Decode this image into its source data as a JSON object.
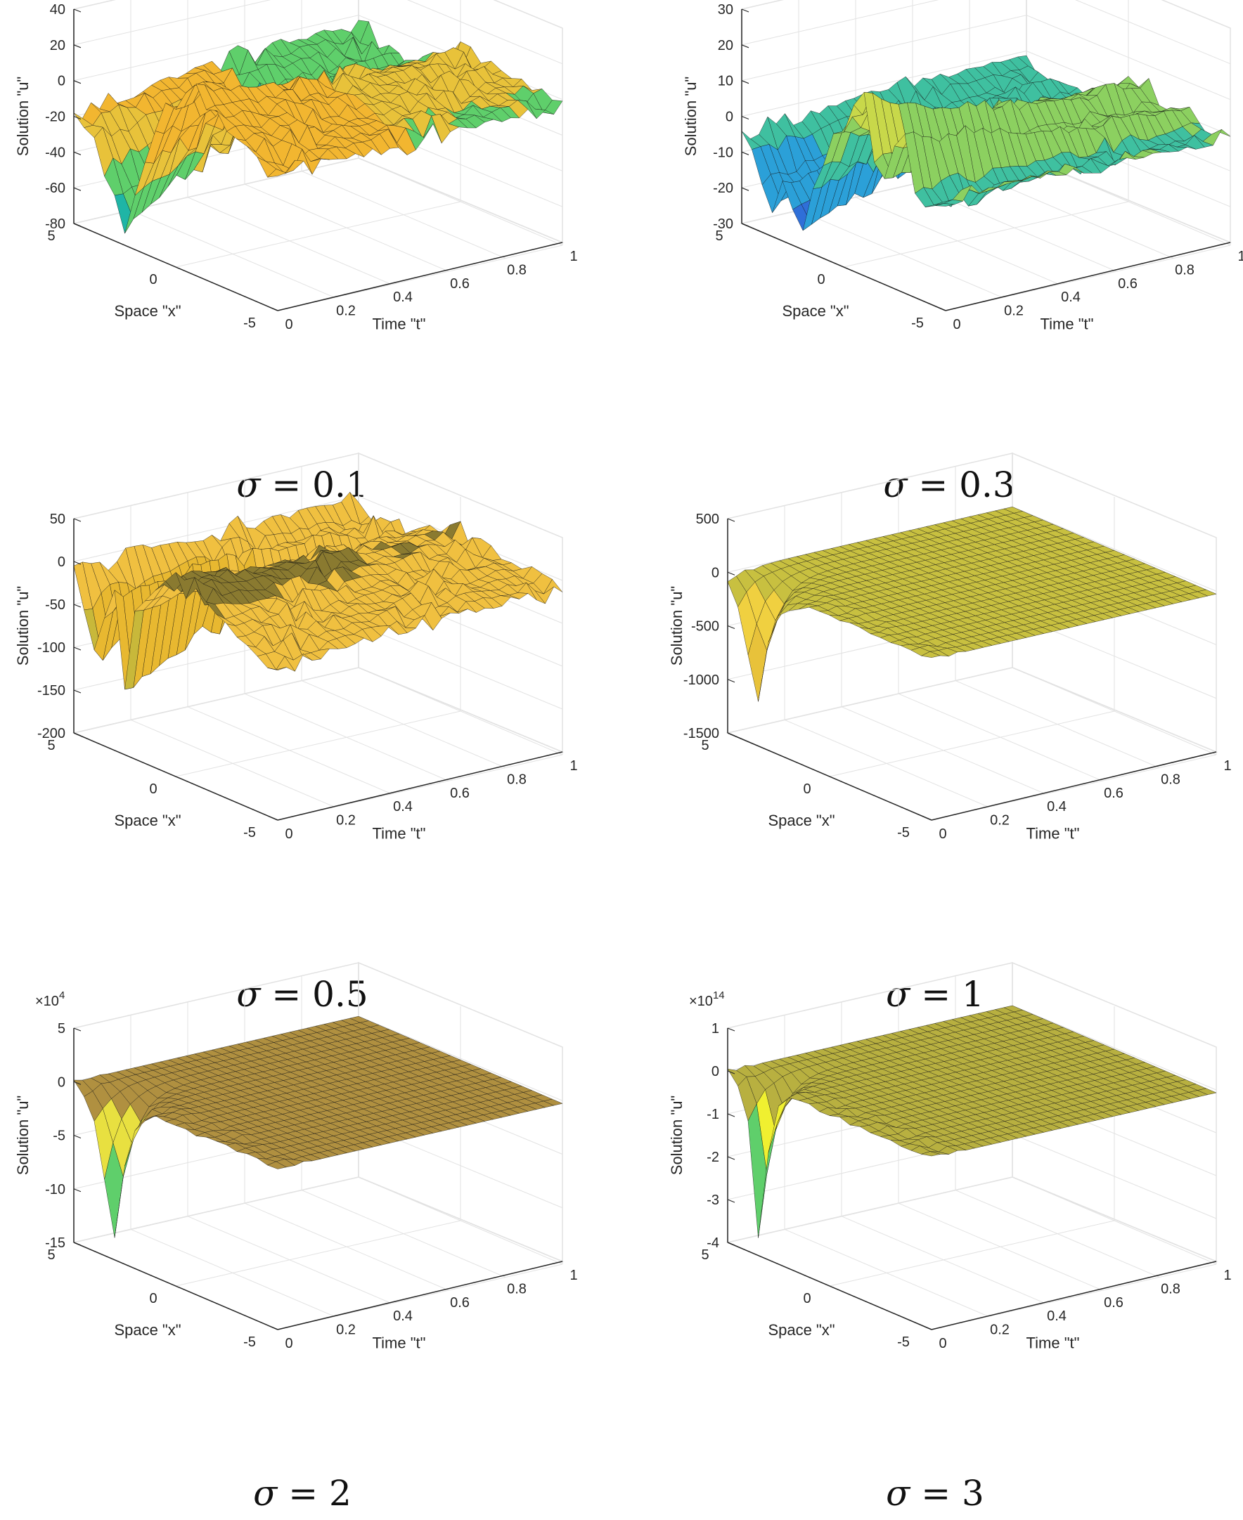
{
  "chart_data": [
    {
      "type": "surface",
      "caption_symbol": "σ",
      "caption_value": "= 0.1",
      "xlabel": "Space \"x\"",
      "ylabel": "Time \"t\"",
      "zlabel": "Solution \"u\"",
      "xlim": [
        -5,
        5
      ],
      "ylim": [
        0,
        1
      ],
      "zlim": [
        -80,
        40
      ],
      "zticks": [
        "40",
        "20",
        "0",
        "-20",
        "-40",
        "-60",
        "-80"
      ],
      "zexp": "",
      "zexp_power": "",
      "xticks": [
        "5",
        "0",
        "-5"
      ],
      "tticks": [
        "0",
        "0.2",
        "0.4",
        "0.6",
        "0.8",
        "1"
      ],
      "edge_profile": [
        -20,
        -22,
        -30,
        -45,
        -60,
        -70,
        -50,
        -30,
        -10,
        5,
        12,
        20,
        25,
        20,
        15,
        10,
        5,
        3,
        0,
        -2,
        -5
      ],
      "minimum_u": -70,
      "colors": [
        "#3b3fd0",
        "#2f8fd8",
        "#1fb5a6",
        "#5fcf6b",
        "#e8c23a",
        "#f2b630"
      ]
    },
    {
      "type": "surface",
      "caption_symbol": "σ",
      "caption_value": "= 0.3",
      "xlabel": "Space \"x\"",
      "ylabel": "Time \"t\"",
      "zlabel": "Solution \"u\"",
      "xlim": [
        -5,
        5
      ],
      "ylim": [
        0,
        1
      ],
      "zlim": [
        -30,
        30
      ],
      "zticks": [
        "30",
        "20",
        "10",
        "0",
        "-10",
        "-20",
        "-30"
      ],
      "zexp": "",
      "zexp_power": "",
      "xticks": [
        "5",
        "0",
        "-5"
      ],
      "tticks": [
        "0",
        "0.2",
        "0.4",
        "0.6",
        "0.8",
        "1"
      ],
      "edge_profile": [
        -5,
        -10,
        -18,
        -22,
        -15,
        -20,
        -25,
        -12,
        -5,
        5,
        10,
        15,
        20,
        5,
        0,
        10,
        15,
        0,
        -5,
        0,
        2
      ],
      "minimum_u": -25,
      "colors": [
        "#2f6fd8",
        "#2ba0d8",
        "#3fc0a0",
        "#8cd060",
        "#c8d84a",
        "#e8e040"
      ]
    },
    {
      "type": "surface",
      "caption_symbol": "σ",
      "caption_value": "= 0.5",
      "xlabel": "Space \"x\"",
      "ylabel": "Time \"t\"",
      "zlabel": "Solution \"u\"",
      "xlim": [
        -5,
        5
      ],
      "ylim": [
        0,
        1
      ],
      "zlim": [
        -200,
        50
      ],
      "zticks": [
        "50",
        "0",
        "-50",
        "-100",
        "-150",
        "-200"
      ],
      "zexp": "",
      "zexp_power": "",
      "xticks": [
        "5",
        "0",
        "-5"
      ],
      "tticks": [
        "0",
        "0.2",
        "0.4",
        "0.6",
        "0.8",
        "1"
      ],
      "edge_profile": [
        -10,
        -50,
        -100,
        -40,
        -20,
        -130,
        -30,
        -10,
        10,
        20,
        30,
        25,
        20,
        10,
        5,
        0,
        -5,
        -10,
        -15,
        -20,
        -25
      ],
      "minimum_u": -130,
      "colors": [
        "#2ba0d8",
        "#3fc0a0",
        "#c8b83a",
        "#e8b830",
        "#f0c040",
        "#8a7a30"
      ]
    },
    {
      "type": "surface",
      "caption_symbol": "σ",
      "caption_value": "= 1",
      "xlabel": "Space \"x\"",
      "ylabel": "Time \"t\"",
      "zlabel": "Solution \"u\"",
      "xlim": [
        -5,
        5
      ],
      "ylim": [
        0,
        1
      ],
      "zlim": [
        -1500,
        500
      ],
      "zticks": [
        "500",
        "0",
        "-500",
        "-1000",
        "-1500"
      ],
      "zexp": "",
      "zexp_power": "",
      "xticks": [
        "5",
        "0",
        "-5"
      ],
      "tticks": [
        "0",
        "0.2",
        "0.4",
        "0.6",
        "0.8",
        "1"
      ],
      "edge_profile": [
        -100,
        -300,
        -700,
        -1100,
        -500,
        -200,
        -100,
        -50,
        0,
        0,
        0,
        0,
        0,
        0,
        0,
        0,
        0,
        0,
        0,
        0,
        0
      ],
      "minimum_u": -1100,
      "colors": [
        "#2ba0d8",
        "#3fc0a0",
        "#e8c23a",
        "#f0d040",
        "#c8c040",
        "#a8a030"
      ]
    },
    {
      "type": "surface",
      "caption_symbol": "σ",
      "caption_value": "= 2",
      "xlabel": "Space \"x\"",
      "ylabel": "Time \"t\"",
      "zlabel": "Solution \"u\"",
      "xlim": [
        -5,
        5
      ],
      "ylim": [
        0,
        1
      ],
      "zlim": [
        -15,
        5
      ],
      "zticks": [
        "5",
        "0",
        "-5",
        "-10",
        "-15"
      ],
      "zexp": "×10",
      "zexp_power": "4",
      "xticks": [
        "5",
        "0",
        "-5"
      ],
      "tticks": [
        "0",
        "0.2",
        "0.4",
        "0.6",
        "0.8",
        "1"
      ],
      "edge_profile": [
        0,
        -1,
        -3,
        -8,
        -13,
        -6,
        -2,
        -1,
        0,
        0,
        0,
        0,
        0,
        0,
        0,
        0,
        0,
        0,
        0,
        0,
        0
      ],
      "minimum_u": -13,
      "colors": [
        "#3b3fd0",
        "#2ba0d8",
        "#5fcf6b",
        "#e8e040",
        "#b09040",
        "#8a7a30"
      ]
    },
    {
      "type": "surface",
      "caption_symbol": "σ",
      "caption_value": "= 3",
      "xlabel": "Space \"x\"",
      "ylabel": "Time \"t\"",
      "zlabel": "Solution \"u\"",
      "xlim": [
        -5,
        5
      ],
      "ylim": [
        0,
        1
      ],
      "zlim": [
        -4,
        1
      ],
      "zticks": [
        "1",
        "0",
        "-1",
        "-2",
        "-3",
        "-4"
      ],
      "zexp": "×10",
      "zexp_power": "14",
      "xticks": [
        "5",
        "0",
        "-5"
      ],
      "tticks": [
        "0",
        "0.2",
        "0.4",
        "0.6",
        "0.8",
        "1"
      ],
      "edge_profile": [
        0,
        -0.2,
        -1,
        -3.6,
        -1.5,
        -0.3,
        0,
        0,
        0,
        0,
        0,
        0,
        0,
        0,
        0,
        0,
        0,
        0,
        0,
        0,
        0
      ],
      "minimum_u": -3.6,
      "colors": [
        "#3b3fd0",
        "#2ba0d8",
        "#5fcf6b",
        "#f0f030",
        "#b8b040",
        "#9a9a38"
      ]
    }
  ]
}
